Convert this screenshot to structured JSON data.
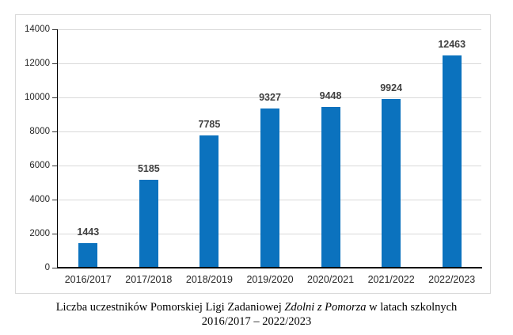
{
  "page": {
    "background_color": "#ffffff"
  },
  "chart_data": {
    "type": "bar",
    "categories": [
      "2016/2017",
      "2017/2018",
      "2018/2019",
      "2019/2020",
      "2020/2021",
      "2021/2022",
      "2022/2023"
    ],
    "values": [
      1443,
      5185,
      7785,
      9327,
      9448,
      9924,
      12463
    ],
    "data_labels": [
      "1443",
      "5185",
      "7785",
      "9327",
      "9448",
      "9924",
      "12463"
    ],
    "yticks": [
      0,
      2000,
      4000,
      6000,
      8000,
      10000,
      12000,
      14000
    ],
    "ylim": [
      0,
      14000
    ],
    "ytick_step": 2000,
    "grid": true,
    "legend": "none",
    "xlabel": "",
    "ylabel": "",
    "bar_color": "#0b72be",
    "gridline_color": "#d9d9d9",
    "axis_color": "#000000",
    "tick_label_color": "#262626",
    "data_label_color": "#404040",
    "frame_border_color": "#d9d9d9"
  },
  "caption": {
    "line1_prefix": "Liczba uczestników Pomorskiej Ligi Zadaniowej ",
    "line1_italic": "Zdolni z Pomorza",
    "line1_suffix": " w latach szkolnych",
    "line2": "2016/2017 – 2022/2023"
  }
}
